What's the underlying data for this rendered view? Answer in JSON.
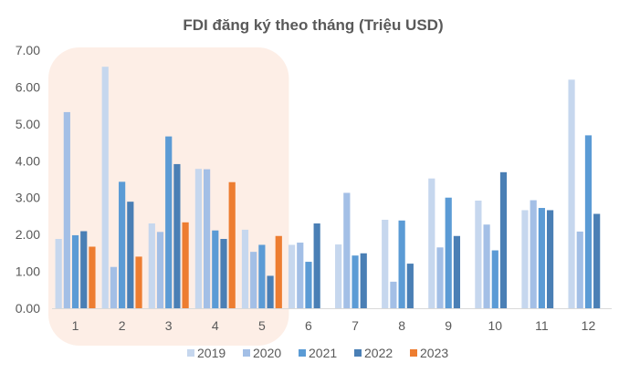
{
  "chart_data": {
    "type": "bar",
    "title": "FDI đăng ký theo tháng (Triệu USD)",
    "xlabel": "",
    "ylabel": "",
    "ylim": [
      0,
      7
    ],
    "yticks": [
      "0.00",
      "1.00",
      "2.00",
      "3.00",
      "4.00",
      "5.00",
      "6.00",
      "7.00"
    ],
    "categories": [
      "1",
      "2",
      "3",
      "4",
      "5",
      "6",
      "7",
      "8",
      "9",
      "10",
      "11",
      "12"
    ],
    "legend_position": "bottom",
    "highlight": {
      "from_category": "1",
      "to_category": "5",
      "color": "#fdeee6"
    },
    "series": [
      {
        "name": "2019",
        "color": "#c6d7ee",
        "values": [
          1.88,
          6.55,
          2.3,
          3.78,
          2.13,
          1.72,
          1.73,
          2.4,
          3.52,
          2.92,
          2.66,
          6.2
        ]
      },
      {
        "name": "2020",
        "color": "#a3bfe6",
        "values": [
          5.32,
          1.12,
          2.07,
          3.77,
          1.53,
          1.78,
          3.13,
          0.72,
          1.65,
          2.27,
          2.93,
          2.08
        ]
      },
      {
        "name": "2021",
        "color": "#5b9bd5",
        "values": [
          1.98,
          3.43,
          4.66,
          2.11,
          1.72,
          1.26,
          1.43,
          2.38,
          3.0,
          1.57,
          2.72,
          4.69
        ]
      },
      {
        "name": "2022",
        "color": "#4a7fb5",
        "values": [
          2.09,
          2.89,
          3.91,
          1.88,
          0.88,
          2.3,
          1.49,
          1.21,
          1.96,
          3.69,
          2.66,
          2.56
        ]
      },
      {
        "name": "2023",
        "color": "#ed7d31",
        "values": [
          1.67,
          1.4,
          2.33,
          3.42,
          1.96,
          null,
          null,
          null,
          null,
          null,
          null,
          null
        ]
      }
    ]
  }
}
